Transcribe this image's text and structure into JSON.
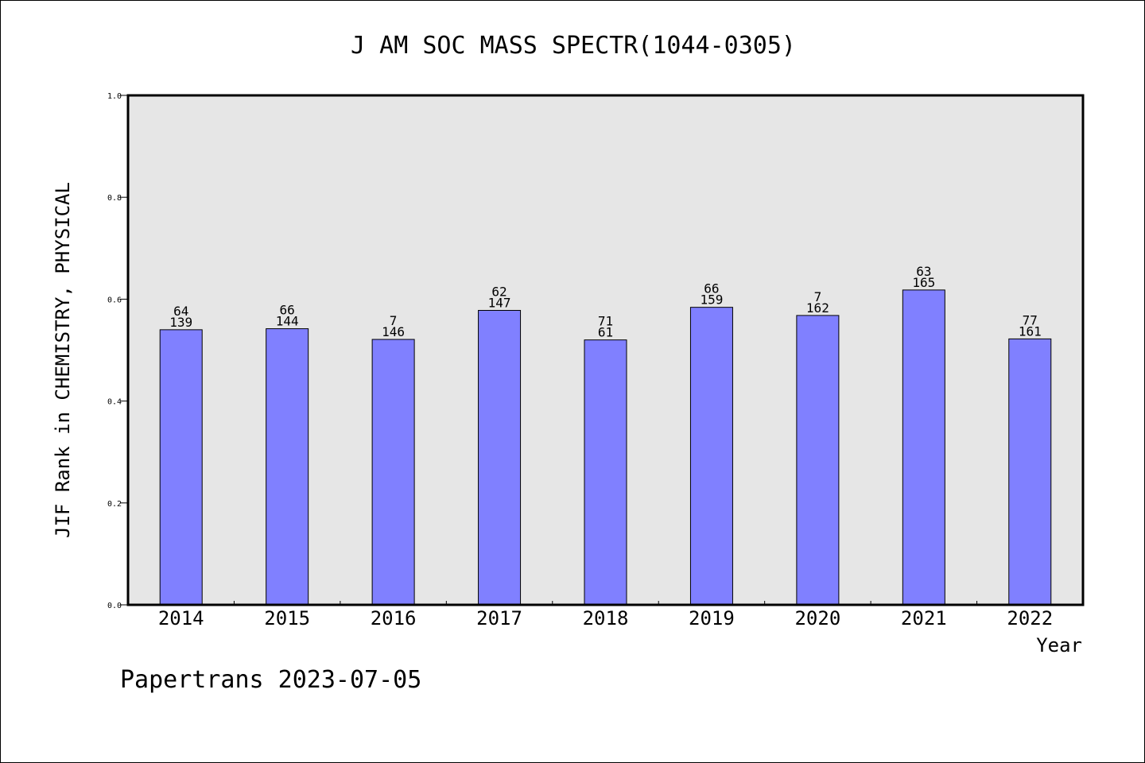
{
  "chart_data": {
    "type": "bar",
    "title": "J AM SOC MASS SPECTR(1044-0305)",
    "xlabel": "Year",
    "ylabel": "JIF Rank in CHEMISTRY, PHYSICAL",
    "ylim": [
      0,
      1.0
    ],
    "yticks": [
      "0.0",
      "0.2",
      "0.4",
      "0.6",
      "0.8",
      "1.0"
    ],
    "categories": [
      "2014",
      "2015",
      "2016",
      "2017",
      "2018",
      "2019",
      "2020",
      "2021",
      "2022"
    ],
    "values": [
      0.54,
      0.542,
      0.521,
      0.578,
      0.52,
      0.584,
      0.568,
      0.618,
      0.522
    ],
    "rank_labels": [
      "64",
      "66",
      "7",
      "62",
      "71",
      "66",
      "7",
      "63",
      "77"
    ],
    "total_labels": [
      "139",
      "144",
      "146",
      "147",
      "61",
      "159",
      "162",
      "165",
      "161"
    ],
    "grid": false,
    "colors": {
      "bar": "#8080ff",
      "plot_background": "#e6e6e6",
      "bar_edge": "#000000"
    }
  },
  "footer": {
    "text": "Papertrans 2023-07-05"
  }
}
